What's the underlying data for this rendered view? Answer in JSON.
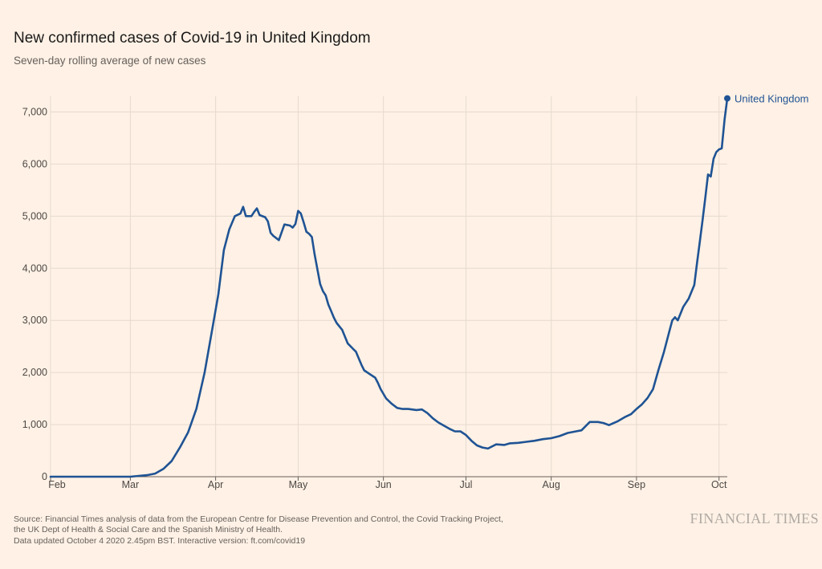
{
  "chart_data": {
    "type": "line",
    "title": "New confirmed cases of Covid-19 in United Kingdom",
    "subtitle": "Seven-day rolling average of new cases",
    "xlabel": "",
    "ylabel": "",
    "x_ticks": [
      "Feb",
      "Mar",
      "Apr",
      "May",
      "Jun",
      "Jul",
      "Aug",
      "Sep",
      "Oct"
    ],
    "y_ticks": [
      0,
      1000,
      2000,
      3000,
      4000,
      5000,
      6000,
      7000
    ],
    "y_tick_labels": [
      "0",
      "1,000",
      "2,000",
      "3,000",
      "4,000",
      "5,000",
      "6,000",
      "7,000"
    ],
    "ylim": [
      0,
      7300
    ],
    "xlim": [
      "2020-02-01",
      "2020-10-04"
    ],
    "grid": true,
    "legend": "end-of-line label",
    "color": "#1f5394",
    "series": [
      {
        "name": "United Kingdom",
        "dates": [
          "2020-02-01",
          "2020-02-15",
          "2020-03-01",
          "2020-03-04",
          "2020-03-07",
          "2020-03-10",
          "2020-03-13",
          "2020-03-16",
          "2020-03-19",
          "2020-03-22",
          "2020-03-25",
          "2020-03-28",
          "2020-03-31",
          "2020-04-02",
          "2020-04-04",
          "2020-04-05",
          "2020-04-06",
          "2020-04-08",
          "2020-04-10",
          "2020-04-11",
          "2020-04-12",
          "2020-04-13",
          "2020-04-14",
          "2020-04-15",
          "2020-04-16",
          "2020-04-17",
          "2020-04-19",
          "2020-04-20",
          "2020-04-21",
          "2020-04-22",
          "2020-04-24",
          "2020-04-26",
          "2020-04-28",
          "2020-04-29",
          "2020-04-30",
          "2020-05-01",
          "2020-05-02",
          "2020-05-03",
          "2020-05-04",
          "2020-05-05",
          "2020-05-06",
          "2020-05-07",
          "2020-05-09",
          "2020-05-10",
          "2020-05-11",
          "2020-05-12",
          "2020-05-13",
          "2020-05-14",
          "2020-05-15",
          "2020-05-17",
          "2020-05-19",
          "2020-05-21",
          "2020-05-22",
          "2020-05-24",
          "2020-05-25",
          "2020-05-27",
          "2020-05-29",
          "2020-05-30",
          "2020-05-31",
          "2020-06-02",
          "2020-06-04",
          "2020-06-06",
          "2020-06-08",
          "2020-06-10",
          "2020-06-13",
          "2020-06-15",
          "2020-06-17",
          "2020-06-19",
          "2020-06-21",
          "2020-06-23",
          "2020-06-25",
          "2020-06-27",
          "2020-06-29",
          "2020-07-01",
          "2020-07-03",
          "2020-07-05",
          "2020-07-07",
          "2020-07-09",
          "2020-07-12",
          "2020-07-15",
          "2020-07-17",
          "2020-07-20",
          "2020-07-23",
          "2020-07-26",
          "2020-07-29",
          "2020-08-01",
          "2020-08-04",
          "2020-08-07",
          "2020-08-10",
          "2020-08-12",
          "2020-08-15",
          "2020-08-18",
          "2020-08-20",
          "2020-08-22",
          "2020-08-25",
          "2020-08-28",
          "2020-08-30",
          "2020-09-01",
          "2020-09-03",
          "2020-09-05",
          "2020-09-07",
          "2020-09-09",
          "2020-09-11",
          "2020-09-12",
          "2020-09-13",
          "2020-09-14",
          "2020-09-15",
          "2020-09-16",
          "2020-09-18",
          "2020-09-20",
          "2020-09-22",
          "2020-09-23",
          "2020-09-24",
          "2020-09-25",
          "2020-09-26",
          "2020-09-27",
          "2020-09-28",
          "2020-09-29",
          "2020-09-30",
          "2020-10-01",
          "2020-10-02",
          "2020-10-03",
          "2020-10-04"
        ],
        "values": [
          0,
          0,
          0,
          15,
          30,
          60,
          150,
          300,
          560,
          850,
          1300,
          2000,
          2900,
          3500,
          4350,
          4550,
          4750,
          5000,
          5050,
          5180,
          5000,
          5000,
          5000,
          5080,
          5150,
          5020,
          4980,
          4900,
          4680,
          4620,
          4540,
          4840,
          4820,
          4780,
          4850,
          5100,
          5050,
          4880,
          4700,
          4660,
          4600,
          4260,
          3700,
          3560,
          3480,
          3300,
          3180,
          3050,
          2950,
          2820,
          2560,
          2450,
          2400,
          2150,
          2040,
          1970,
          1900,
          1800,
          1680,
          1500,
          1400,
          1320,
          1300,
          1300,
          1280,
          1290,
          1220,
          1120,
          1040,
          980,
          920,
          870,
          870,
          800,
          690,
          600,
          560,
          540,
          620,
          610,
          640,
          650,
          670,
          690,
          720,
          740,
          780,
          840,
          870,
          890,
          1050,
          1050,
          1030,
          990,
          1060,
          1150,
          1200,
          1300,
          1390,
          1510,
          1680,
          2050,
          2400,
          2600,
          2800,
          3000,
          3060,
          3000,
          3260,
          3420,
          3680,
          4100,
          4500,
          4920,
          5350,
          5800,
          5760,
          6100,
          6230,
          6280,
          6300,
          6850,
          7260
        ]
      }
    ]
  },
  "footer": {
    "line1": "Source: Financial Times analysis of data from the European Centre for Disease Prevention and Control, the Covid Tracking Project,",
    "line2": "the UK Dept of Health & Social Care and the Spanish Ministry of Health.",
    "line3": "Data updated October 4 2020 2.45pm BST. Interactive version: ft.com/covid19"
  },
  "brand": "FINANCIAL TIMES"
}
